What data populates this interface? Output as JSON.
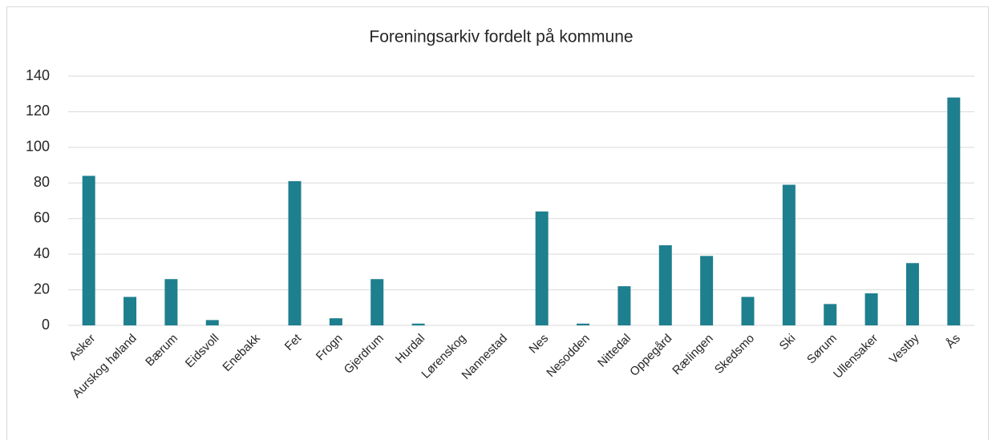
{
  "chart_data": {
    "type": "bar",
    "title": "Foreningsarkiv fordelt på kommune",
    "categories": [
      "Asker",
      "Aurskog høland",
      "Bærum",
      "Eidsvoll",
      "Enebakk",
      "Fet",
      "Frogn",
      "Gjerdrum",
      "Hurdal",
      "Lørenskog",
      "Nannestad",
      "Nes",
      "Nesodden",
      "Nittedal",
      "Oppegård",
      "Rælingen",
      "Skedsmo",
      "Ski",
      "Sørum",
      "Ullensaker",
      "Vestby",
      "Ås"
    ],
    "values": [
      84,
      16,
      26,
      3,
      0,
      81,
      4,
      26,
      1,
      0,
      0,
      64,
      1,
      22,
      45,
      39,
      16,
      79,
      12,
      18,
      35,
      128
    ],
    "color": "#1e7f8e",
    "ylim": [
      0,
      140
    ],
    "yticks": [
      0,
      20,
      40,
      60,
      80,
      100,
      120,
      140
    ],
    "grid": true
  }
}
